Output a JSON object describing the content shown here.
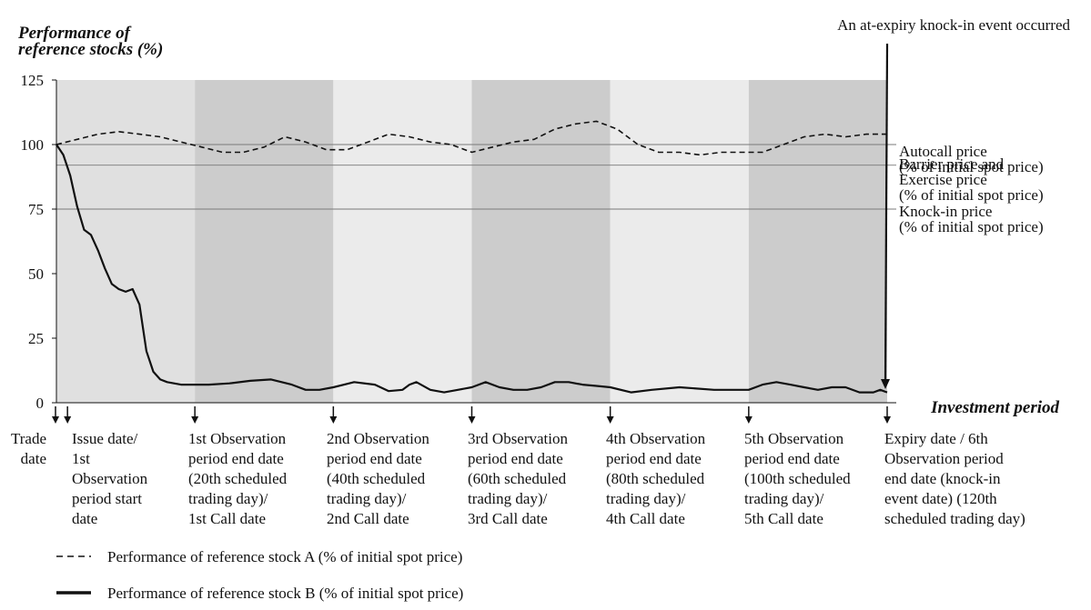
{
  "chart_data": {
    "type": "line",
    "ylabel": [
      "Performance of",
      "reference stocks (%)"
    ],
    "xlabel": "Investment period",
    "ylim": [
      0,
      125
    ],
    "yticks": [
      0,
      25,
      50,
      75,
      100,
      125
    ],
    "x_range": [
      0,
      120
    ],
    "grid": false,
    "shaded_periods": [
      {
        "start": 0,
        "end": 20,
        "tone": "light"
      },
      {
        "start": 20,
        "end": 40,
        "tone": "dark"
      },
      {
        "start": 40,
        "end": 60,
        "tone": "lighter"
      },
      {
        "start": 60,
        "end": 80,
        "tone": "dark"
      },
      {
        "start": 80,
        "end": 100,
        "tone": "lighter"
      },
      {
        "start": 100,
        "end": 120,
        "tone": "dark"
      }
    ],
    "reference_lines": [
      {
        "y": 100,
        "label": [
          "Autocall price",
          "(% of initial spot price)"
        ]
      },
      {
        "y": 92,
        "label": [
          "Barrier price and",
          "Exercise price",
          "(% of initial spot price)"
        ]
      },
      {
        "y": 75,
        "label": [
          "Knock-in price",
          "(% of initial spot price)"
        ]
      }
    ],
    "series": [
      {
        "name": "Performance of reference stock A (% of initial spot price)",
        "style": "dashed",
        "x": [
          0,
          3,
          6,
          9,
          12,
          15,
          18,
          21,
          24,
          27,
          30,
          33,
          36,
          39,
          42,
          45,
          48,
          51,
          54,
          57,
          60,
          63,
          66,
          69,
          72,
          75,
          78,
          81,
          84,
          87,
          90,
          93,
          96,
          99,
          102,
          105,
          108,
          111,
          114,
          117,
          120
        ],
        "values": [
          100,
          102,
          104,
          105,
          104,
          103,
          101,
          99,
          97,
          97,
          99,
          103,
          101,
          98,
          98,
          101,
          104,
          103,
          101,
          100,
          97,
          99,
          101,
          102,
          106,
          108,
          109,
          106,
          100,
          97,
          97,
          96,
          97,
          97,
          97,
          100,
          103,
          104,
          103,
          104,
          104
        ]
      },
      {
        "name": "Performance of reference stock B (% of initial spot price)",
        "style": "solid",
        "x": [
          0,
          1,
          2,
          3,
          4,
          5,
          6,
          7,
          8,
          9,
          10,
          11,
          12,
          13,
          14,
          15,
          16,
          17,
          18,
          19,
          20,
          22,
          25,
          28,
          31,
          34,
          36,
          38,
          40,
          43,
          46,
          48,
          50,
          51,
          52,
          54,
          56,
          58,
          60,
          62,
          64,
          66,
          68,
          70,
          72,
          74,
          76,
          78,
          80,
          83,
          86,
          90,
          95,
          100,
          102,
          104,
          106,
          108,
          110,
          112,
          114,
          116,
          118,
          119,
          120
        ],
        "values": [
          100,
          96,
          88,
          76,
          67,
          65,
          59,
          52,
          46,
          44,
          43,
          44,
          38,
          20,
          12,
          9,
          8,
          7.5,
          7,
          7,
          7,
          7,
          7.5,
          8.5,
          9,
          7,
          5,
          5,
          6,
          8,
          7,
          4.5,
          5,
          7,
          8,
          5,
          4,
          5,
          6,
          8,
          6,
          5,
          5,
          6,
          8,
          8,
          7,
          6.5,
          6,
          4,
          5,
          6,
          5,
          5,
          7,
          8,
          7,
          6,
          5,
          6,
          6,
          4,
          4,
          5,
          4
        ]
      }
    ],
    "annotations": [
      {
        "x": 120,
        "text": "An at-expiry knock-in event occurred"
      }
    ],
    "period_markers": [
      {
        "x": -2,
        "label": [
          "Trade",
          "date"
        ]
      },
      {
        "x": 1.6,
        "label": [
          "Issue date/",
          "1st",
          "Observation",
          "period start",
          "date"
        ]
      },
      {
        "x": 20,
        "label": [
          "1st Observation",
          "period end date",
          "(20th scheduled",
          "trading day)/",
          "1st Call date"
        ]
      },
      {
        "x": 40,
        "label": [
          "2nd Observation",
          "period end date",
          "(40th scheduled",
          "trading day)/",
          "2nd Call date"
        ]
      },
      {
        "x": 60,
        "label": [
          "3rd Observation",
          "period end date",
          "(60th scheduled",
          "trading day)/",
          "3rd Call date"
        ]
      },
      {
        "x": 80,
        "label": [
          "4th Observation",
          "period end date",
          "(80th scheduled",
          "trading day)/",
          "4th Call date"
        ]
      },
      {
        "x": 100,
        "label": [
          "5th Observation",
          "period end date",
          "(100th scheduled",
          "trading day)/",
          "5th Call date"
        ]
      },
      {
        "x": 120,
        "label": [
          "Expiry date / 6th",
          "Observation period",
          "end date (knock-in",
          "event date) (120th",
          "scheduled trading day)"
        ]
      }
    ],
    "legend": [
      {
        "style": "dashed",
        "text": "Performance of reference stock A (% of initial spot price)"
      },
      {
        "style": "solid",
        "text": "Performance of reference stock B (% of initial spot price)"
      }
    ],
    "legend_position": "bottom-left",
    "colors": {
      "light": "#e0e0e0",
      "dark": "#cccccc",
      "lighter": "#ebebeb",
      "line": "#111111",
      "ref": "#7a7a7a"
    }
  }
}
